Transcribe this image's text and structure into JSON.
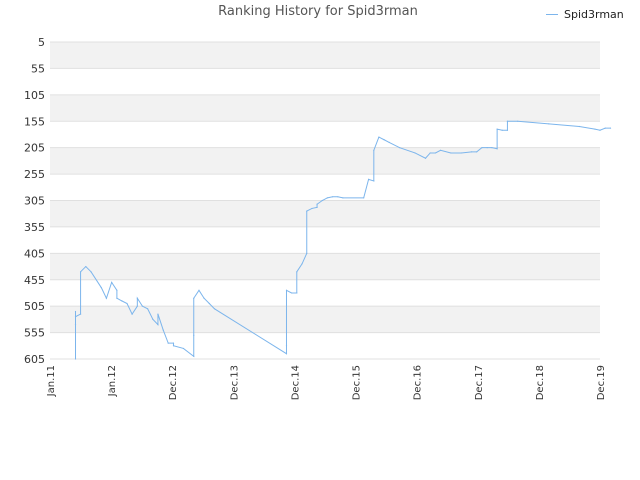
{
  "chart_data": {
    "type": "line",
    "title": "Ranking History for Spid3rman",
    "xlabel": "",
    "ylabel": "",
    "y_reversed": true,
    "ylim": [
      5,
      605
    ],
    "y_ticks": [
      "5",
      "55",
      "105",
      "155",
      "205",
      "255",
      "305",
      "355",
      "405",
      "455",
      "505",
      "555",
      "605"
    ],
    "x_ticks": [
      "Jan.11",
      "Jan.12",
      "Dec.12",
      "Dec.13",
      "Dec.14",
      "Dec.15",
      "Dec.16",
      "Dec.17",
      "Dec.18",
      "Dec.19"
    ],
    "grid": "horizontal-banded",
    "legend_position": "top-right",
    "series_color": "#7cb5ec",
    "series": [
      {
        "name": "Spid3rman",
        "points": [
          [
            "2011-06",
            605
          ],
          [
            "2011-06",
            540
          ],
          [
            "2011-06",
            515
          ],
          [
            "2011-06",
            525
          ],
          [
            "2011-07",
            520
          ],
          [
            "2011-07",
            440
          ],
          [
            "2011-08",
            430
          ],
          [
            "2011-09",
            440
          ],
          [
            "2011-11",
            470
          ],
          [
            "2011-12",
            490
          ],
          [
            "2012-01",
            460
          ],
          [
            "2012-02",
            475
          ],
          [
            "2012-02",
            490
          ],
          [
            "2012-03",
            495
          ],
          [
            "2012-04",
            500
          ],
          [
            "2012-05",
            520
          ],
          [
            "2012-06",
            505
          ],
          [
            "2012-06",
            490
          ],
          [
            "2012-07",
            505
          ],
          [
            "2012-08",
            510
          ],
          [
            "2012-09",
            530
          ],
          [
            "2012-10",
            540
          ],
          [
            "2012-10",
            520
          ],
          [
            "2012-11",
            550
          ],
          [
            "2012-12",
            575
          ],
          [
            "2013-01",
            575
          ],
          [
            "2013-01",
            580
          ],
          [
            "2013-03",
            585
          ],
          [
            "2013-05",
            600
          ],
          [
            "2013-05",
            560
          ],
          [
            "2013-05",
            490
          ],
          [
            "2013-06",
            475
          ],
          [
            "2013-07",
            490
          ],
          [
            "2013-08",
            500
          ],
          [
            "2013-09",
            510
          ],
          [
            "2014-11",
            595
          ],
          [
            "2014-11",
            580
          ],
          [
            "2014-11",
            475
          ],
          [
            "2014-12",
            480
          ],
          [
            "2015-01",
            480
          ],
          [
            "2015-01",
            440
          ],
          [
            "2015-02",
            425
          ],
          [
            "2015-03",
            405
          ],
          [
            "2015-03",
            325
          ],
          [
            "2015-04",
            320
          ],
          [
            "2015-05",
            318
          ],
          [
            "2015-05",
            312
          ],
          [
            "2015-06",
            305
          ],
          [
            "2015-07",
            300
          ],
          [
            "2015-08",
            298
          ],
          [
            "2015-09",
            298
          ],
          [
            "2015-10",
            300
          ],
          [
            "2016-02",
            300
          ],
          [
            "2016-03",
            265
          ],
          [
            "2016-04",
            268
          ],
          [
            "2016-04",
            210
          ],
          [
            "2016-05",
            185
          ],
          [
            "2016-06",
            190
          ],
          [
            "2016-07",
            195
          ],
          [
            "2016-09",
            205
          ],
          [
            "2016-12",
            215
          ],
          [
            "2017-02",
            225
          ],
          [
            "2017-03",
            215
          ],
          [
            "2017-04",
            215
          ],
          [
            "2017-05",
            210
          ],
          [
            "2017-07",
            215
          ],
          [
            "2017-09",
            215
          ],
          [
            "2017-11",
            213
          ],
          [
            "2017-12",
            213
          ],
          [
            "2018-01",
            205
          ],
          [
            "2018-02",
            205
          ],
          [
            "2018-03",
            205
          ],
          [
            "2018-04",
            207
          ],
          [
            "2018-04",
            170
          ],
          [
            "2018-05",
            172
          ],
          [
            "2018-06",
            172
          ],
          [
            "2018-06",
            155
          ],
          [
            "2018-08",
            155
          ],
          [
            "2019-02",
            160
          ],
          [
            "2019-08",
            165
          ],
          [
            "2019-11",
            170
          ],
          [
            "2019-12",
            172
          ],
          [
            "2020-01",
            168
          ],
          [
            "2020-02",
            168
          ]
        ]
      }
    ]
  }
}
